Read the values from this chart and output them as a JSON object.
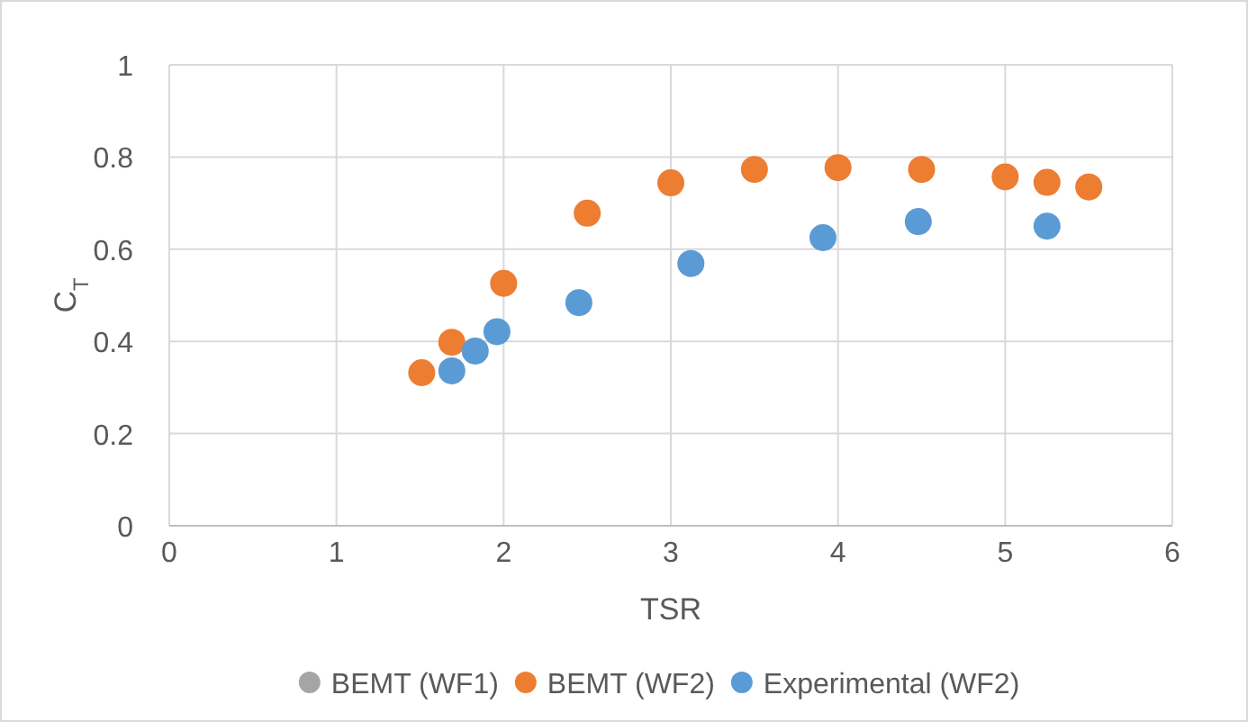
{
  "chart_data": {
    "type": "scatter",
    "xlabel": "TSR",
    "ylabel": "C$_{T}$",
    "xlim": [
      0,
      6
    ],
    "xticks": [
      0,
      1,
      2,
      3,
      4,
      5,
      6
    ],
    "ylim": [
      0,
      1
    ],
    "yticks": [
      0,
      0.2,
      0.4,
      0.6,
      0.8,
      1
    ],
    "grid": true,
    "legend": "bottom",
    "marker": "circle",
    "series": [
      {
        "name": "BEMT (WF1)",
        "color": "#a5a5a5"
      },
      {
        "name": "BEMT (WF2)",
        "color": "#ed7d31",
        "x": [
          1.51,
          1.69,
          2.0,
          2.5,
          3.0,
          3.5,
          4.0,
          4.5,
          5.0,
          5.25,
          5.5
        ],
        "values": [
          0.332,
          0.398,
          0.526,
          0.678,
          0.744,
          0.773,
          0.777,
          0.773,
          0.757,
          0.745,
          0.735
        ]
      },
      {
        "name": "Experimental (WF2)",
        "color": "#5b9bd5",
        "x": [
          1.69,
          1.83,
          1.96,
          2.45,
          3.12,
          3.91,
          4.48,
          5.25
        ],
        "values": [
          0.336,
          0.379,
          0.421,
          0.484,
          0.569,
          0.625,
          0.66,
          0.65
        ]
      }
    ]
  }
}
